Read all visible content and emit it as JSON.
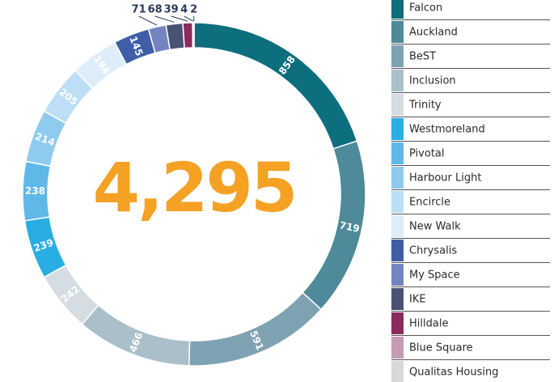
{
  "chart_data": {
    "type": "donut",
    "center_label": "4,295",
    "center_color": "#f4a124",
    "categories": [
      "Falcon",
      "Auckland",
      "BeST",
      "Inclusion",
      "Trinity",
      "Westmoreland",
      "Pivotal",
      "Harbour Light",
      "Encircle",
      "New Walk",
      "Chrysalis",
      "My Space",
      "IKE",
      "Hilldale",
      "Blue Square",
      "Qualitas Housing"
    ],
    "values": [
      858,
      719,
      591,
      466,
      242,
      239,
      238,
      214,
      205,
      194,
      145,
      71,
      68,
      39,
      4,
      2
    ],
    "colors": [
      "#0d6e7d",
      "#4e8a99",
      "#7fa2b2",
      "#aabfca",
      "#d5dde2",
      "#29aee3",
      "#5fb8e8",
      "#8ecbef",
      "#bddff5",
      "#ddeefa",
      "#3f5ea8",
      "#7384c1",
      "#4a5274",
      "#8a2a5d",
      "#c79ab5",
      "#d8d8d8"
    ],
    "legend": "right"
  }
}
